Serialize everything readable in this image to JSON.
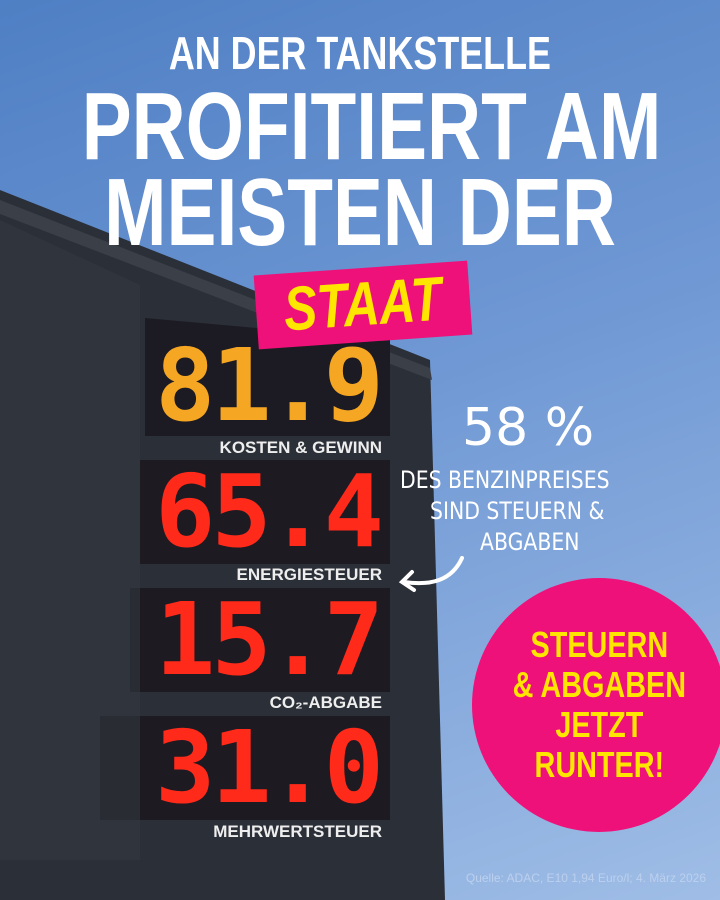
{
  "headline": {
    "line1": "AN DER TANKSTELLE",
    "line2": "PROFITIERT AM",
    "line3": "MEISTEN DER",
    "highlight": "STAAT"
  },
  "price_sign": [
    {
      "value": "81.9",
      "label": "KOSTEN & GEWINN",
      "color": "#f5a623"
    },
    {
      "value": "65.4",
      "label": "ENERGIESTEUER",
      "color": "#ff2a1a"
    },
    {
      "value": "15.7",
      "label": "CO₂-ABGABE",
      "color": "#ff2a1a"
    },
    {
      "value": "31.0",
      "label": "MEHRWERTSTEUER",
      "color": "#ff2a1a"
    }
  ],
  "annotation": {
    "percent": "58 %",
    "line1": "DES BENZINPREISES",
    "line2": "SIND STEUERN &",
    "line3": "ABGABEN",
    "icon": "curved-arrow-icon"
  },
  "badge": {
    "line1": "STEUERN",
    "line2": "& ABGABEN",
    "line3": "JETZT",
    "line4": "RUNTER!"
  },
  "source": "Quelle: ADAC, E10 1,94 Euro/l; 4. März 2026",
  "colors": {
    "pink": "#ee117a",
    "yellow": "#ffe600",
    "sky": "#6f98d4",
    "building": "#2b2f37"
  }
}
